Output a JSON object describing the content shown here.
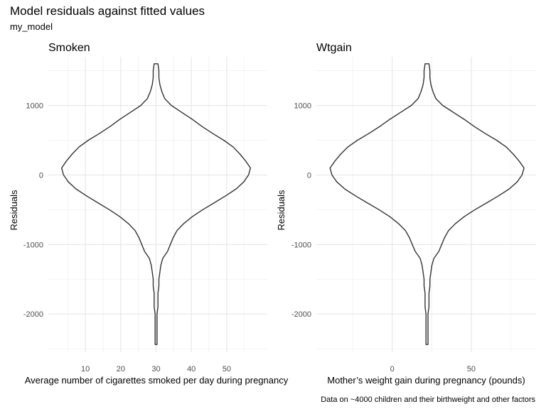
{
  "title": "Model residuals against fitted values",
  "subtitle": "my_model",
  "caption": "Data on ~4000 children and their birthweight and other factors",
  "chart_data": [
    {
      "type": "violin",
      "panel_title": "Smoken",
      "xlabel": "Average number of cigarettes smoked per day during pregnancy",
      "ylabel": "Residuals",
      "xlim": [
        -0.5,
        61.5
      ],
      "ylim": [
        -2550,
        1700
      ],
      "x_ticks": [
        10,
        20,
        30,
        40,
        50
      ],
      "x_tick_labels": [
        "10",
        "20",
        "30",
        "40",
        "50"
      ],
      "y_ticks": [
        -2000,
        -1000,
        0,
        1000
      ],
      "y_tick_labels": [
        "-2000",
        "-1000",
        "0",
        "1000"
      ],
      "grid": true,
      "violin_center_x": 30,
      "violin_half_width_max": 27,
      "outline_color": "#333333",
      "density": [
        {
          "y": 1600,
          "w": 0.02
        },
        {
          "y": 1500,
          "w": 0.03
        },
        {
          "y": 1400,
          "w": 0.03
        },
        {
          "y": 1300,
          "w": 0.04
        },
        {
          "y": 1200,
          "w": 0.06
        },
        {
          "y": 1100,
          "w": 0.09
        },
        {
          "y": 1000,
          "w": 0.16
        },
        {
          "y": 900,
          "w": 0.27
        },
        {
          "y": 800,
          "w": 0.38
        },
        {
          "y": 700,
          "w": 0.48
        },
        {
          "y": 600,
          "w": 0.59
        },
        {
          "y": 500,
          "w": 0.71
        },
        {
          "y": 400,
          "w": 0.81
        },
        {
          "y": 300,
          "w": 0.88
        },
        {
          "y": 200,
          "w": 0.94
        },
        {
          "y": 100,
          "w": 0.99
        },
        {
          "y": 0,
          "w": 0.97
        },
        {
          "y": -100,
          "w": 0.92
        },
        {
          "y": -200,
          "w": 0.84
        },
        {
          "y": -300,
          "w": 0.73
        },
        {
          "y": -400,
          "w": 0.61
        },
        {
          "y": -500,
          "w": 0.49
        },
        {
          "y": -600,
          "w": 0.38
        },
        {
          "y": -700,
          "w": 0.29
        },
        {
          "y": -800,
          "w": 0.22
        },
        {
          "y": -900,
          "w": 0.18
        },
        {
          "y": -1000,
          "w": 0.15
        },
        {
          "y": -1100,
          "w": 0.12
        },
        {
          "y": -1200,
          "w": 0.07
        },
        {
          "y": -1300,
          "w": 0.05
        },
        {
          "y": -1400,
          "w": 0.04
        },
        {
          "y": -1500,
          "w": 0.03
        },
        {
          "y": -1600,
          "w": 0.03
        },
        {
          "y": -1700,
          "w": 0.02
        },
        {
          "y": -1800,
          "w": 0.02
        },
        {
          "y": -1900,
          "w": 0.02
        },
        {
          "y": -2000,
          "w": 0.01
        },
        {
          "y": -2100,
          "w": 0.01
        },
        {
          "y": -2200,
          "w": 0.01
        },
        {
          "y": -2300,
          "w": 0.01
        },
        {
          "y": -2440,
          "w": 0.01
        }
      ]
    },
    {
      "type": "violin",
      "panel_title": "Wtgain",
      "xlabel": "Mother’s weight gain during pregnancy (pounds)",
      "ylabel": "Residuals",
      "xlim": [
        -48,
        91
      ],
      "ylim": [
        -2550,
        1700
      ],
      "x_ticks": [
        0,
        50
      ],
      "x_tick_labels": [
        "0",
        "50"
      ],
      "y_ticks": [
        -2000,
        -1000,
        0,
        1000
      ],
      "y_tick_labels": [
        "-2000",
        "-1000",
        "0",
        "1000"
      ],
      "grid": true,
      "violin_center_x": 22,
      "violin_half_width_max": 62,
      "outline_color": "#333333",
      "density": [
        {
          "y": 1600,
          "w": 0.02
        },
        {
          "y": 1500,
          "w": 0.03
        },
        {
          "y": 1400,
          "w": 0.03
        },
        {
          "y": 1300,
          "w": 0.04
        },
        {
          "y": 1200,
          "w": 0.06
        },
        {
          "y": 1100,
          "w": 0.09
        },
        {
          "y": 1000,
          "w": 0.16
        },
        {
          "y": 900,
          "w": 0.27
        },
        {
          "y": 800,
          "w": 0.38
        },
        {
          "y": 700,
          "w": 0.48
        },
        {
          "y": 600,
          "w": 0.59
        },
        {
          "y": 500,
          "w": 0.71
        },
        {
          "y": 400,
          "w": 0.81
        },
        {
          "y": 300,
          "w": 0.88
        },
        {
          "y": 200,
          "w": 0.94
        },
        {
          "y": 100,
          "w": 0.99
        },
        {
          "y": 0,
          "w": 0.97
        },
        {
          "y": -100,
          "w": 0.92
        },
        {
          "y": -200,
          "w": 0.84
        },
        {
          "y": -300,
          "w": 0.73
        },
        {
          "y": -400,
          "w": 0.61
        },
        {
          "y": -500,
          "w": 0.49
        },
        {
          "y": -600,
          "w": 0.38
        },
        {
          "y": -700,
          "w": 0.29
        },
        {
          "y": -800,
          "w": 0.22
        },
        {
          "y": -900,
          "w": 0.18
        },
        {
          "y": -1000,
          "w": 0.15
        },
        {
          "y": -1100,
          "w": 0.12
        },
        {
          "y": -1200,
          "w": 0.07
        },
        {
          "y": -1300,
          "w": 0.05
        },
        {
          "y": -1400,
          "w": 0.04
        },
        {
          "y": -1500,
          "w": 0.03
        },
        {
          "y": -1600,
          "w": 0.03
        },
        {
          "y": -1700,
          "w": 0.02
        },
        {
          "y": -1800,
          "w": 0.02
        },
        {
          "y": -1900,
          "w": 0.02
        },
        {
          "y": -2000,
          "w": 0.01
        },
        {
          "y": -2100,
          "w": 0.01
        },
        {
          "y": -2200,
          "w": 0.01
        },
        {
          "y": -2300,
          "w": 0.01
        },
        {
          "y": -2440,
          "w": 0.01
        }
      ]
    }
  ]
}
